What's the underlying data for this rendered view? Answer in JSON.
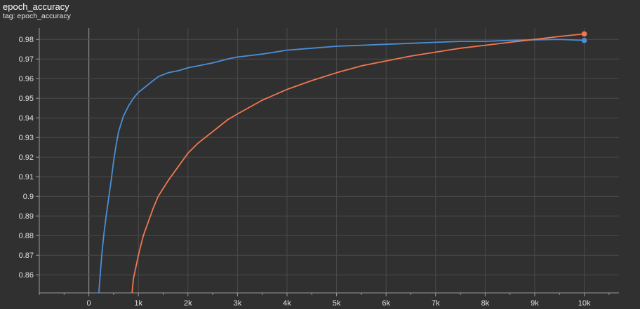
{
  "header": {
    "title": "epoch_accuracy",
    "subtitle": "tag: epoch_accuracy"
  },
  "colors": {
    "background": "#303030",
    "grid": "#4a4a4a",
    "axis": "#9a9a9a",
    "zero_line": "#8c8c8c",
    "text": "#e0e0e0"
  },
  "chart_data": {
    "type": "line",
    "title": "epoch_accuracy",
    "subtitle": "tag: epoch_accuracy",
    "xlabel": "",
    "ylabel": "",
    "xlim": [
      -1000,
      10700
    ],
    "ylim": [
      0.8508,
      0.9858
    ],
    "xticks": [
      0,
      1000,
      2000,
      3000,
      4000,
      5000,
      6000,
      7000,
      8000,
      9000,
      10000
    ],
    "xtick_labels": [
      "0",
      "1k",
      "2k",
      "3k",
      "4k",
      "5k",
      "6k",
      "7k",
      "8k",
      "9k",
      "10k"
    ],
    "yticks": [
      0.86,
      0.87,
      0.88,
      0.89,
      0.9,
      0.91,
      0.92,
      0.93,
      0.94,
      0.95,
      0.96,
      0.97,
      0.98
    ],
    "ytick_labels": [
      "0.86",
      "0.87",
      "0.88",
      "0.89",
      "0.9",
      "0.91",
      "0.92",
      "0.93",
      "0.94",
      "0.95",
      "0.96",
      "0.97",
      "0.98"
    ],
    "grid": true,
    "legend": "none",
    "series": [
      {
        "color": "#4a8fd6",
        "x": [
          200,
          230,
          260,
          300,
          350,
          400,
          450,
          500,
          550,
          600,
          700,
          800,
          900,
          1000,
          1100,
          1200,
          1400,
          1600,
          1800,
          2000,
          2200,
          2500,
          2800,
          3000,
          3500,
          4000,
          4500,
          5000,
          5500,
          6000,
          6500,
          7000,
          7500,
          8000,
          8500,
          9000,
          9500,
          10000
        ],
        "y": [
          0.85,
          0.86,
          0.87,
          0.88,
          0.89,
          0.899,
          0.908,
          0.918,
          0.926,
          0.933,
          0.941,
          0.946,
          0.95,
          0.953,
          0.955,
          0.957,
          0.961,
          0.963,
          0.964,
          0.9655,
          0.9665,
          0.968,
          0.97,
          0.971,
          0.9725,
          0.9745,
          0.9755,
          0.9765,
          0.977,
          0.9775,
          0.978,
          0.9785,
          0.979,
          0.979,
          0.9795,
          0.9798,
          0.98,
          0.9795
        ],
        "end_marker": true
      },
      {
        "color": "#f07850",
        "x": [
          870,
          900,
          950,
          1000,
          1050,
          1100,
          1200,
          1300,
          1400,
          1500,
          1600,
          1800,
          2000,
          2200,
          2500,
          2800,
          3000,
          3500,
          4000,
          4500,
          5000,
          5500,
          6000,
          6500,
          7000,
          7500,
          8000,
          8500,
          9000,
          9500,
          10000
        ],
        "y": [
          0.85,
          0.858,
          0.864,
          0.87,
          0.875,
          0.88,
          0.887,
          0.894,
          0.9,
          0.904,
          0.908,
          0.915,
          0.922,
          0.927,
          0.933,
          0.939,
          0.942,
          0.949,
          0.9545,
          0.959,
          0.963,
          0.9665,
          0.969,
          0.9715,
          0.9735,
          0.9755,
          0.977,
          0.9785,
          0.98,
          0.9815,
          0.9828
        ],
        "end_marker": true
      }
    ]
  }
}
